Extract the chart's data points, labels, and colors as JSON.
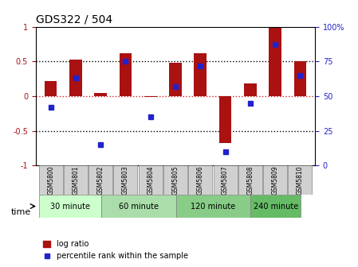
{
  "title": "GDS322 / 504",
  "samples": [
    "GSM5800",
    "GSM5801",
    "GSM5802",
    "GSM5803",
    "GSM5804",
    "GSM5805",
    "GSM5806",
    "GSM5807",
    "GSM5808",
    "GSM5809",
    "GSM5810"
  ],
  "log_ratio": [
    0.22,
    0.53,
    0.04,
    0.62,
    -0.01,
    0.48,
    0.62,
    -0.68,
    0.18,
    1.0,
    0.5
  ],
  "percentile": [
    0.42,
    0.63,
    0.15,
    0.75,
    0.35,
    0.57,
    0.72,
    0.1,
    0.45,
    0.87,
    0.65
  ],
  "bar_color": "#aa1111",
  "dot_color": "#2222cc",
  "groups": [
    {
      "label": "30 minute",
      "start": 0,
      "end": 2,
      "color": "#ccffcc"
    },
    {
      "label": "60 minute",
      "start": 2,
      "end": 5,
      "color": "#aaddaa"
    },
    {
      "label": "120 minute",
      "start": 5,
      "end": 8,
      "color": "#88cc88"
    },
    {
      "label": "240 minute",
      "start": 8,
      "end": 10,
      "color": "#66bb66"
    }
  ],
  "ylim_left": [
    -1,
    1
  ],
  "ylim_right": [
    0,
    100
  ],
  "yticks_left": [
    -1,
    -0.5,
    0,
    0.5,
    1
  ],
  "yticks_right": [
    0,
    25,
    50,
    75,
    100
  ],
  "hlines": [
    -0.5,
    0,
    0.5
  ],
  "hline_zero_color": "#cc2222",
  "hline_color": "black",
  "xlabel": "time",
  "legend_bar_label": "log ratio",
  "legend_dot_label": "percentile rank within the sample",
  "background_color": "#ffffff",
  "plot_bg_color": "#ffffff"
}
